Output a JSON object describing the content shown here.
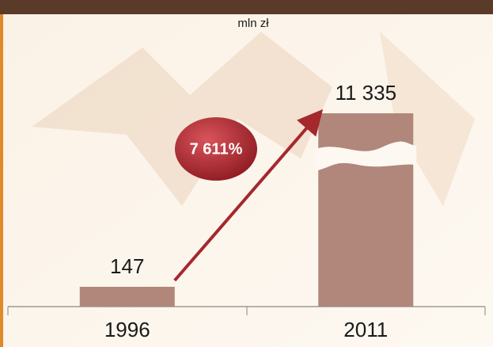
{
  "chart_data": {
    "type": "bar",
    "subtitle": "mln zł",
    "categories": [
      "1996",
      "2011"
    ],
    "values": [
      147,
      11335
    ],
    "value_labels": [
      "147",
      "11 335"
    ],
    "color": "#b0877a",
    "annotation": "7 611%"
  }
}
